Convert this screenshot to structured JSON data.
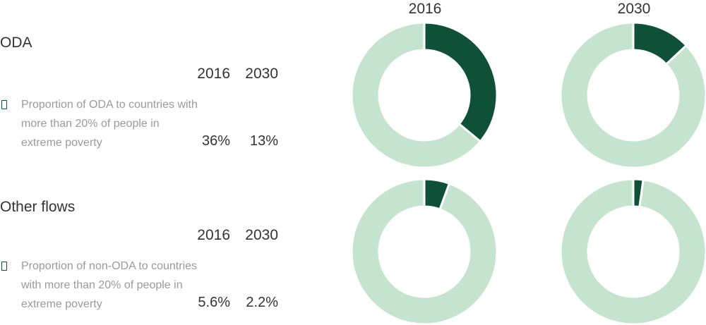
{
  "colors": {
    "highlight": "#0f5038",
    "rest": "#c5e4d0",
    "separator": "#ffffff"
  },
  "chart_data": {
    "type": "pie",
    "column_headers": [
      "2016",
      "2030"
    ],
    "sections": [
      {
        "title": "ODA",
        "years": [
          "2016",
          "2030"
        ],
        "legend_icon": "square-outline-icon",
        "description": "Proportion of ODA to countries with more than 20% of people in extreme poverty",
        "labels": [
          "36%",
          "13%"
        ],
        "values": [
          36,
          13
        ]
      },
      {
        "title": "Other flows",
        "years": [
          "2016",
          "2030"
        ],
        "legend_icon": "square-outline-icon",
        "description": "Proportion of non-ODA to countries with more than 20% of people in extreme poverty",
        "labels": [
          "5.6%",
          "2.2%"
        ],
        "values": [
          5.6,
          2.2
        ]
      }
    ]
  }
}
